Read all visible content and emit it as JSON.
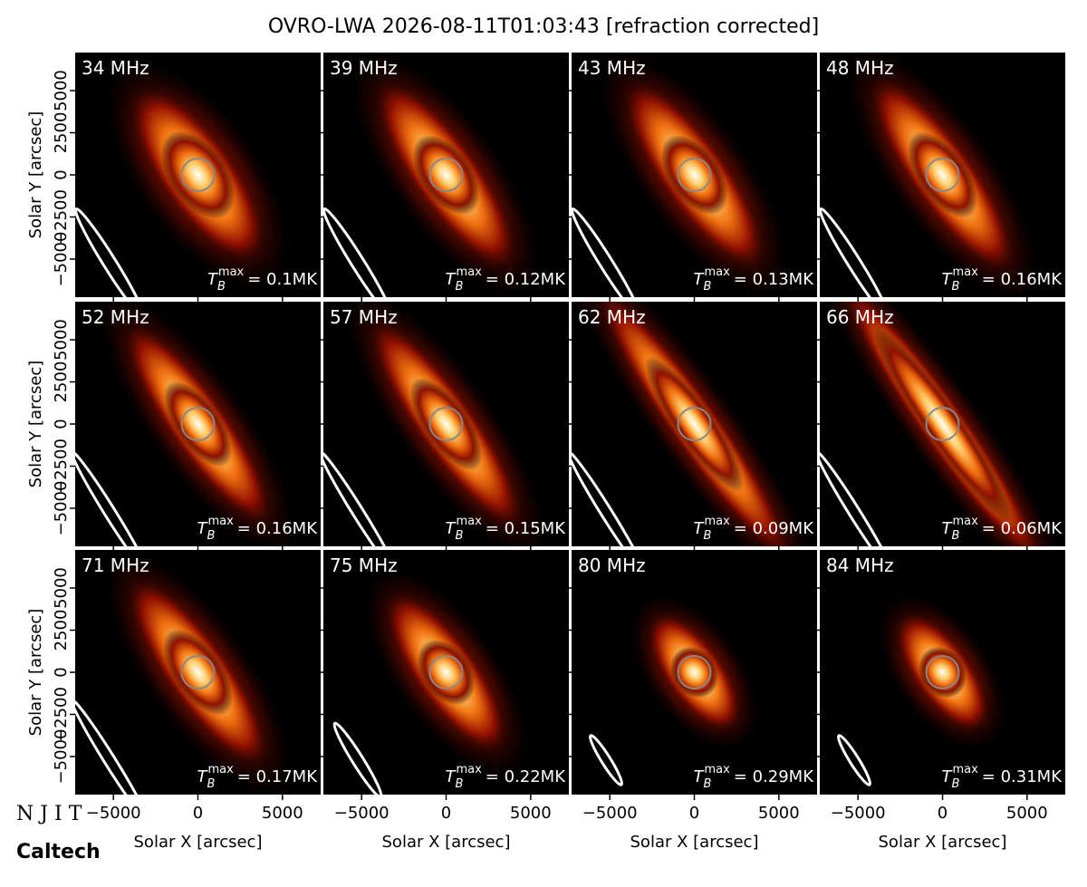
{
  "title": "OVRO-LWA 2026-08-11T01:03:43 [refraction corrected]",
  "xlabel": "Solar X [arcsec]",
  "ylabel": "Solar Y [arcsec]",
  "xlim": [
    -7260,
    7260
  ],
  "ylim": [
    -7260,
    7260
  ],
  "xticks": [
    {
      "value": -5000,
      "label": "−5000"
    },
    0,
    5000
  ],
  "yticks": [
    {
      "value": -5000,
      "label": "−5000"
    },
    {
      "value": -2500,
      "label": "−2500"
    },
    0,
    2500,
    5000
  ],
  "logos": [
    "N J I T",
    "Caltech"
  ],
  "chart_data": [
    {
      "type": "image",
      "title": "34 MHz",
      "annotation": {
        "symbol": "T",
        "subscript": "B",
        "superscript": "max",
        "text": "= 0.1MK"
      }
    },
    {
      "type": "image",
      "title": "39 MHz",
      "annotation": {
        "symbol": "T",
        "subscript": "B",
        "superscript": "max",
        "text": "= 0.12MK"
      }
    },
    {
      "type": "image",
      "title": "43 MHz",
      "annotation": {
        "symbol": "T",
        "subscript": "B",
        "superscript": "max",
        "text": "= 0.13MK"
      }
    },
    {
      "type": "image",
      "title": "48 MHz",
      "annotation": {
        "symbol": "T",
        "subscript": "B",
        "superscript": "max",
        "text": "= 0.16MK"
      }
    },
    {
      "type": "image",
      "title": "52 MHz",
      "annotation": {
        "symbol": "T",
        "subscript": "B",
        "superscript": "max",
        "text": "= 0.16MK"
      }
    },
    {
      "type": "image",
      "title": "57 MHz",
      "annotation": {
        "symbol": "T",
        "subscript": "B",
        "superscript": "max",
        "text": "= 0.15MK"
      }
    },
    {
      "type": "image",
      "title": "62 MHz",
      "annotation": {
        "symbol": "T",
        "subscript": "B",
        "superscript": "max",
        "text": "= 0.09MK"
      }
    },
    {
      "type": "image",
      "title": "66 MHz",
      "annotation": {
        "symbol": "T",
        "subscript": "B",
        "superscript": "max",
        "text": "= 0.06MK"
      }
    },
    {
      "type": "image",
      "title": "71 MHz",
      "annotation": {
        "symbol": "T",
        "subscript": "B",
        "superscript": "max",
        "text": "= 0.17MK"
      }
    },
    {
      "type": "image",
      "title": "75 MHz",
      "annotation": {
        "symbol": "T",
        "subscript": "B",
        "superscript": "max",
        "text": "= 0.22MK"
      }
    },
    {
      "type": "image",
      "title": "80 MHz",
      "annotation": {
        "symbol": "T",
        "subscript": "B",
        "superscript": "max",
        "text": "= 0.29MK"
      }
    },
    {
      "type": "image",
      "title": "84 MHz",
      "annotation": {
        "symbol": "T",
        "subscript": "B",
        "superscript": "max",
        "text": "= 0.31MK"
      }
    }
  ]
}
